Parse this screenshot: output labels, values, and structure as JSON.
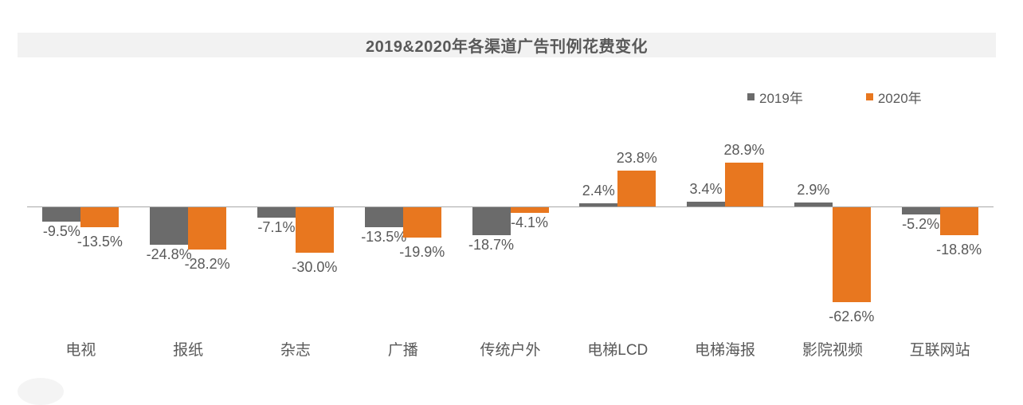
{
  "chart_data": {
    "type": "bar",
    "title": "2019&2020年各渠道广告刊例花费变化",
    "categories": [
      "电视",
      "报纸",
      "杂志",
      "广播",
      "传统户外",
      "电梯LCD",
      "电梯海报",
      "影院视频",
      "互联网站"
    ],
    "series": [
      {
        "name": "2019年",
        "color": "#6b6b6b",
        "values": [
          -9.5,
          -24.8,
          -7.1,
          -13.5,
          -18.7,
          2.4,
          3.4,
          2.9,
          -5.2
        ]
      },
      {
        "name": "2020年",
        "color": "#e8771f",
        "values": [
          -13.5,
          -28.2,
          -30.0,
          -19.9,
          -4.1,
          23.8,
          28.9,
          -62.6,
          -18.8
        ]
      }
    ],
    "value_format": "one_decimal_percent",
    "data_labels": "outside_end",
    "legend_position": "top-right",
    "grid": false,
    "axis": {
      "zero_line": true,
      "y_ticks_visible": false
    },
    "colors": {
      "title_band_bg": "#f2f2f2",
      "text": "#595959",
      "axis_line": "#a8a8a8"
    }
  }
}
